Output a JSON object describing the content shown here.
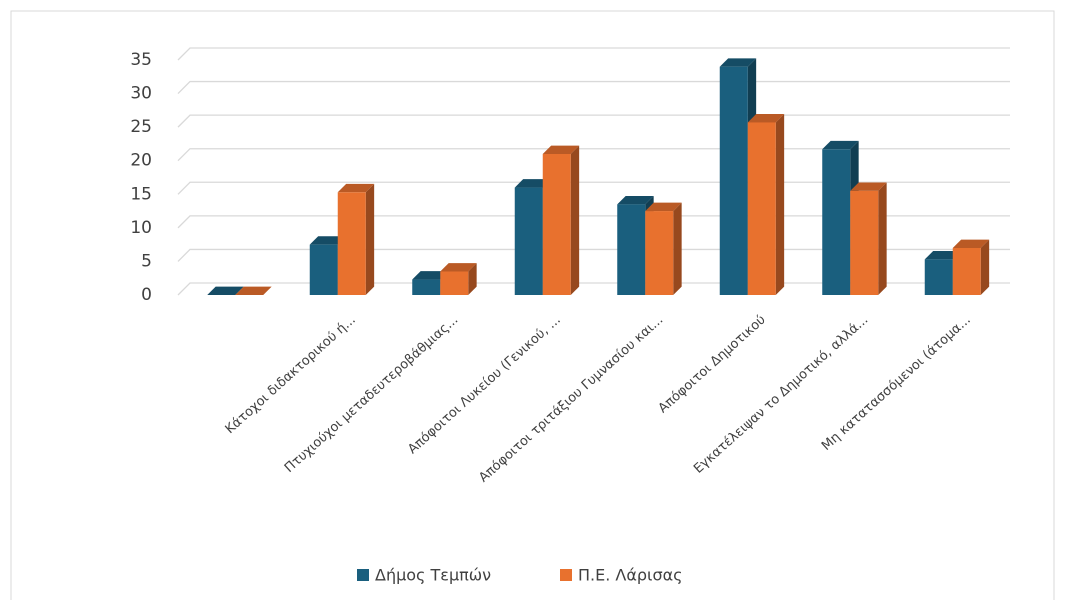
{
  "chart_data": {
    "type": "bar3d",
    "categories": [
      null,
      "Κάτοχοι διδακτορικού ή...",
      "Πτυχιούχοι μεταδευτεροβάθμιας...",
      "Απόφοιτοι Λυκείου (Γενικού, ...",
      "Απόφοιτοι τριτάξιου Γυμνασίου και...",
      "Απόφοιτοι Δημοτικού",
      "Εγκατέλειψαν το Δημοτικό, αλλά...",
      "Μη κατατασσόμενοι (άτομα..."
    ],
    "series": [
      {
        "name": "Δήμος Τεμπών",
        "color": "#1a5f7e",
        "values": [
          0,
          7.5,
          2.3,
          16,
          13.5,
          34,
          21.7,
          5.3
        ]
      },
      {
        "name": "Π.Ε. Λάρισας",
        "color": "#e8712e",
        "values": [
          0,
          15.3,
          3.5,
          21,
          12.5,
          25.7,
          15.5,
          7
        ]
      }
    ],
    "ylim": [
      0,
      35
    ],
    "yticks": [
      0,
      5,
      10,
      15,
      20,
      25,
      30,
      35
    ],
    "grid": true,
    "legend": "bottom"
  }
}
